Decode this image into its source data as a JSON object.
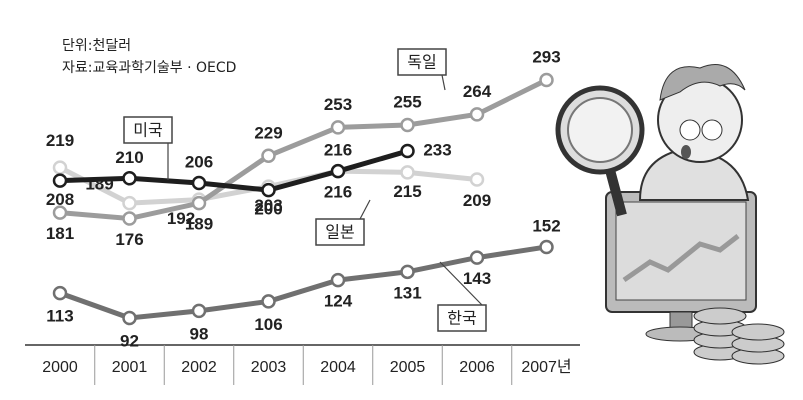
{
  "chart_data": {
    "type": "line",
    "unit_note": "단위:천달러",
    "source": "자료:교육과학기술부 · OECD",
    "categories": [
      "2000",
      "2001",
      "2002",
      "2003",
      "2004",
      "2005",
      "2006",
      "2007년"
    ],
    "series": [
      {
        "name": "독일",
        "color": "#9c9c9c",
        "values": [
          181,
          176,
          189,
          229,
          253,
          255,
          264,
          293
        ]
      },
      {
        "name": "미국",
        "color": "#1e1e1e",
        "values": [
          208,
          210,
          206,
          200,
          216,
          233,
          null,
          null
        ]
      },
      {
        "name": "일본",
        "color": "#d2d2d2",
        "values": [
          219,
          189,
          192,
          203,
          216,
          215,
          209,
          null
        ]
      },
      {
        "name": "한국",
        "color": "#707070",
        "values": [
          113,
          92,
          98,
          106,
          124,
          131,
          143,
          152
        ]
      }
    ]
  }
}
